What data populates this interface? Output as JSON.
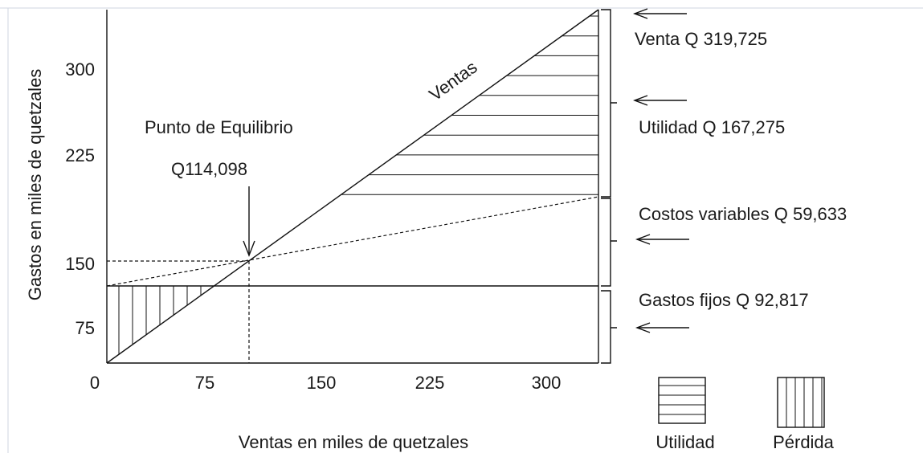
{
  "diagram": {
    "y_axis_label": "Gastos en miles de quetzales",
    "x_axis_label": "Ventas en miles de quetzales",
    "y_ticks": [
      300,
      225,
      150,
      75
    ],
    "x_ticks": [
      0,
      75,
      150,
      225,
      300
    ],
    "line_label": "Ventas",
    "break_even_title": "Punto de Equilibrio",
    "break_even_value": "Q114,098",
    "annotations": [
      "Venta Q 319,725",
      "Utilidad Q 167,275",
      "Costos variables Q 59,633",
      "Gastos fijos Q 92,817"
    ],
    "legend": [
      "Utilidad",
      "Pérdida"
    ]
  }
}
